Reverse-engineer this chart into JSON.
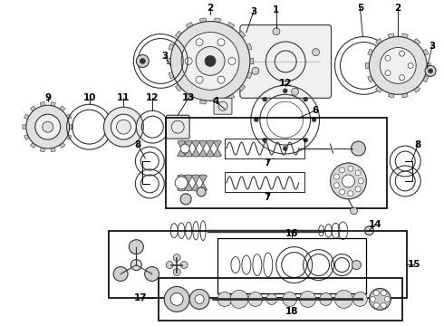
{
  "bg": "#ffffff",
  "fw": 4.9,
  "fh": 3.6,
  "dpi": 100,
  "cc": "#333333",
  "lw": 0.8,
  "fs": 7.5
}
